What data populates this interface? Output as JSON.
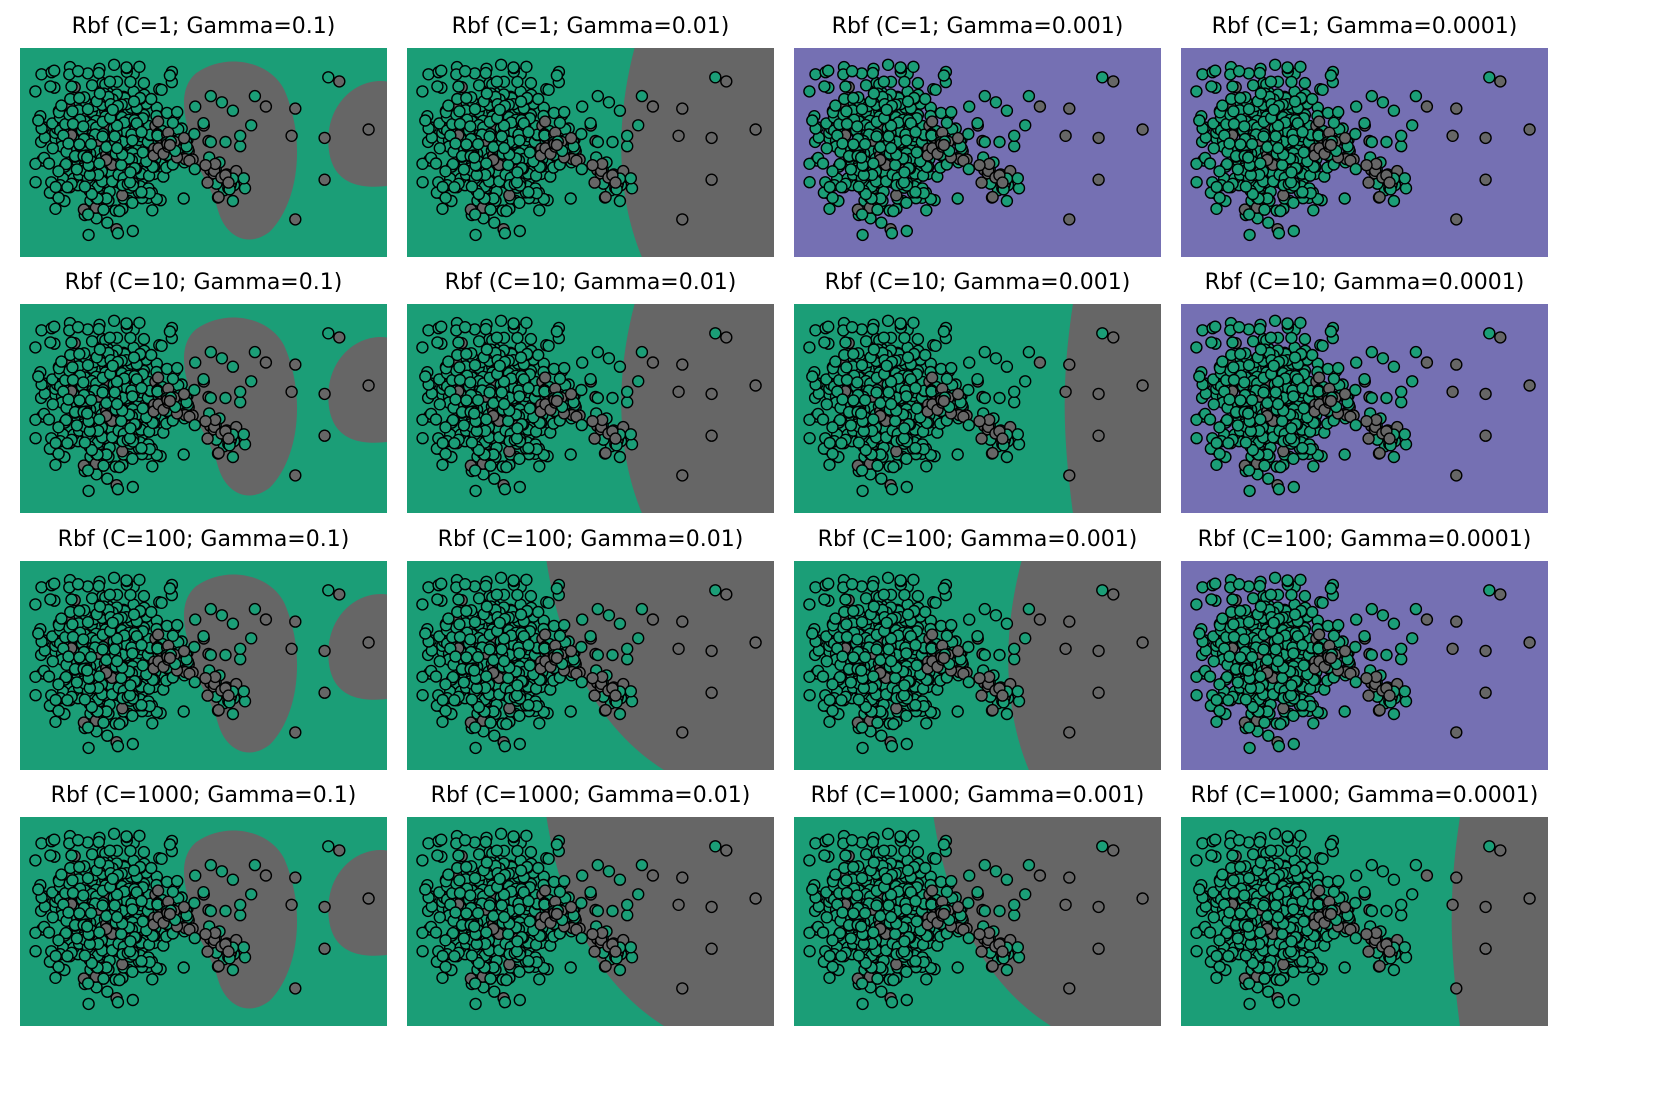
{
  "colors": {
    "green": "#1b9e77",
    "gray": "#666666",
    "purple": "#7570b3",
    "edge": "#000000"
  },
  "chart_data": [
    {
      "type": "scatter",
      "title": "Rbf (C=1; Gamma=0.1)",
      "background": "green",
      "decision_region": "blobs",
      "xlim": [
        0,
        100
      ],
      "ylim": [
        0,
        100
      ]
    },
    {
      "type": "scatter",
      "title": "Rbf (C=1; Gamma=0.01)",
      "background": "green",
      "decision_region": "right",
      "xlim": [
        0,
        100
      ],
      "ylim": [
        0,
        100
      ]
    },
    {
      "type": "scatter",
      "title": "Rbf (C=1; Gamma=0.001)",
      "background": "purple",
      "decision_region": "none",
      "xlim": [
        0,
        100
      ],
      "ylim": [
        0,
        100
      ]
    },
    {
      "type": "scatter",
      "title": "Rbf (C=1; Gamma=0.0001)",
      "background": "purple",
      "decision_region": "none",
      "xlim": [
        0,
        100
      ],
      "ylim": [
        0,
        100
      ]
    },
    {
      "type": "scatter",
      "title": "Rbf (C=10; Gamma=0.1)",
      "background": "green",
      "decision_region": "blobs",
      "xlim": [
        0,
        100
      ],
      "ylim": [
        0,
        100
      ]
    },
    {
      "type": "scatter",
      "title": "Rbf (C=10; Gamma=0.01)",
      "background": "green",
      "decision_region": "right",
      "xlim": [
        0,
        100
      ],
      "ylim": [
        0,
        100
      ]
    },
    {
      "type": "scatter",
      "title": "Rbf (C=10; Gamma=0.001)",
      "background": "green",
      "decision_region": "right-narrow",
      "xlim": [
        0,
        100
      ],
      "ylim": [
        0,
        100
      ]
    },
    {
      "type": "scatter",
      "title": "Rbf (C=10; Gamma=0.0001)",
      "background": "purple",
      "decision_region": "none",
      "xlim": [
        0,
        100
      ],
      "ylim": [
        0,
        100
      ]
    },
    {
      "type": "scatter",
      "title": "Rbf (C=100; Gamma=0.1)",
      "background": "green",
      "decision_region": "blobs",
      "xlim": [
        0,
        100
      ],
      "ylim": [
        0,
        100
      ]
    },
    {
      "type": "scatter",
      "title": "Rbf (C=100; Gamma=0.01)",
      "background": "green",
      "decision_region": "right-wide",
      "xlim": [
        0,
        100
      ],
      "ylim": [
        0,
        100
      ]
    },
    {
      "type": "scatter",
      "title": "Rbf (C=100; Gamma=0.001)",
      "background": "green",
      "decision_region": "right",
      "xlim": [
        0,
        100
      ],
      "ylim": [
        0,
        100
      ]
    },
    {
      "type": "scatter",
      "title": "Rbf (C=100; Gamma=0.0001)",
      "background": "purple",
      "decision_region": "none",
      "xlim": [
        0,
        100
      ],
      "ylim": [
        0,
        100
      ]
    },
    {
      "type": "scatter",
      "title": "Rbf (C=1000; Gamma=0.1)",
      "background": "green",
      "decision_region": "blobs",
      "xlim": [
        0,
        100
      ],
      "ylim": [
        0,
        100
      ]
    },
    {
      "type": "scatter",
      "title": "Rbf (C=1000; Gamma=0.01)",
      "background": "green",
      "decision_region": "right-wide",
      "xlim": [
        0,
        100
      ],
      "ylim": [
        0,
        100
      ]
    },
    {
      "type": "scatter",
      "title": "Rbf (C=1000; Gamma=0.001)",
      "background": "green",
      "decision_region": "right-wide",
      "xlim": [
        0,
        100
      ],
      "ylim": [
        0,
        100
      ]
    },
    {
      "type": "scatter",
      "title": "Rbf (C=1000; Gamma=0.0001)",
      "background": "green",
      "decision_region": "right-narrow",
      "xlim": [
        0,
        100
      ],
      "ylim": [
        0,
        100
      ]
    }
  ],
  "points": {
    "outliers_gray": [
      [
        67,
        28
      ],
      [
        75,
        29
      ],
      [
        87,
        16
      ],
      [
        74,
        42
      ],
      [
        83,
        43
      ],
      [
        95,
        39
      ],
      [
        83,
        63
      ],
      [
        75,
        82
      ]
    ],
    "outliers_green": [
      [
        50,
        36
      ],
      [
        58,
        30
      ],
      [
        63,
        37
      ],
      [
        60,
        47
      ],
      [
        55,
        26
      ],
      [
        64,
        23
      ],
      [
        52,
        23
      ],
      [
        60,
        42
      ],
      [
        52,
        45
      ],
      [
        56,
        45
      ]
    ],
    "top_green": [
      [
        84,
        14
      ]
    ],
    "cluster_center": [
      24,
      47
    ],
    "cluster_rx": 16,
    "cluster_ry": 34
  }
}
